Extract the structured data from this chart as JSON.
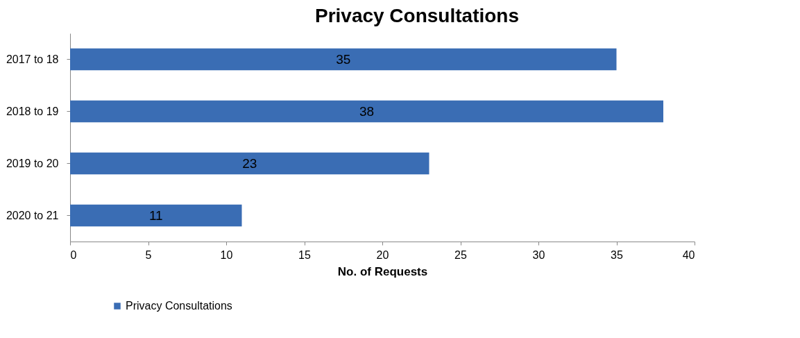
{
  "chart_data": {
    "type": "bar",
    "orientation": "horizontal",
    "title": "Privacy Consultations",
    "xlabel": "No. of Requests",
    "categories": [
      "2017 to 18",
      "2018 to 19",
      "2019 to 20",
      "2020 to 21"
    ],
    "series": [
      {
        "name": "Privacy Consultations",
        "color": "#3a6db4",
        "values": [
          35,
          38,
          23,
          11
        ]
      }
    ],
    "xlim": [
      0,
      40
    ],
    "xticks": [
      0,
      5,
      10,
      15,
      20,
      25,
      30,
      35,
      40
    ],
    "data_labels": true,
    "grid": false,
    "legend": "bottom left"
  }
}
